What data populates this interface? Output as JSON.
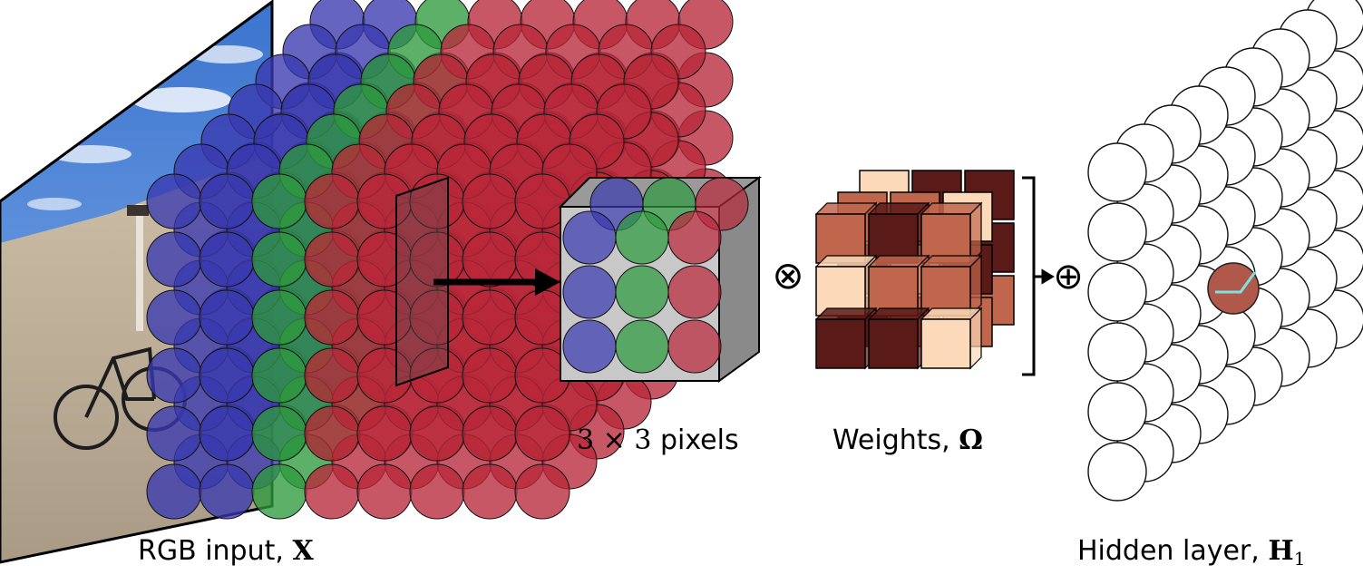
{
  "colors": {
    "blue": "#3a3ab0",
    "green": "#2e9a3e",
    "red": "#b8283a",
    "photo_sky": "#4f86d6",
    "photo_ground": "#b9ab95",
    "weight_light": "#fcd9b8",
    "weight_mid": "#c0664d",
    "weight_dark": "#5a1a18",
    "hidden_active": "#b0584a",
    "hidden_highlight": "#7fe0e0"
  },
  "labels": {
    "input": {
      "text": "RGB input, ",
      "symbol": "X"
    },
    "patch": {
      "number_left": "3",
      "times": "×",
      "number_right": "3",
      "text": "pixels"
    },
    "weights": {
      "text": "Weights, ",
      "symbol": "Ω"
    },
    "hidden": {
      "text": "Hidden layer, ",
      "symbol": "H",
      "subscript": "1"
    }
  },
  "operators": {
    "multiply": "⊗",
    "add": "⊕"
  },
  "weight_cube_front_grid": [
    [
      "mid",
      "dark",
      "mid"
    ],
    [
      "light",
      "mid",
      "mid"
    ],
    [
      "dark",
      "dark",
      "light"
    ]
  ]
}
